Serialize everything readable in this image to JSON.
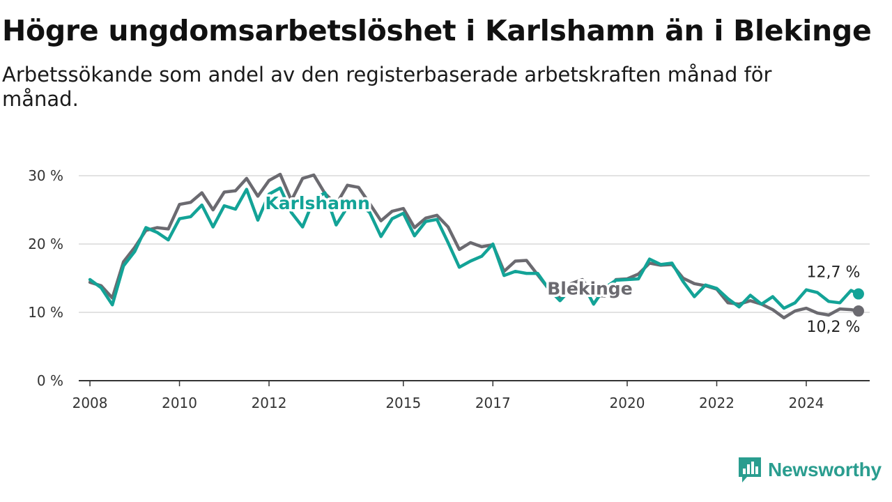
{
  "header": {
    "title": "Högre ungdomsarbetslöshet i Karlshamn än i Blekinge",
    "subtitle": "Arbetssökande som andel av den registerbaserade arbetskraften månad för månad."
  },
  "brand": {
    "name": "Newsworthy",
    "color": "#2a9d8f"
  },
  "chart_data": {
    "type": "line",
    "title": "Högre ungdomsarbetslöshet i Karlshamn än i Blekinge",
    "subtitle": "Arbetssökande som andel av den registerbaserade arbetskraften månad för månad.",
    "xlim": [
      "2007-10",
      "2025-06"
    ],
    "ylim": [
      0,
      30
    ],
    "yticks": [
      0,
      10,
      20,
      30
    ],
    "ytick_labels": [
      "0 %",
      "10 %",
      "20 %",
      "30 %"
    ],
    "xticks": [
      "2008-01",
      "2010-01",
      "2012-01",
      "2015-01",
      "2017-01",
      "2020-01",
      "2022-01",
      "2024-01"
    ],
    "xtick_labels": [
      "2008",
      "2010",
      "2012",
      "2015",
      "2017",
      "2020",
      "2022",
      "2024"
    ],
    "grid": true,
    "legend": "direct labels",
    "series": [
      {
        "name": "Blekinge",
        "color": "#6b6a70",
        "end_label": "10,2 %",
        "points": [
          [
            "2008-01",
            14.4
          ],
          [
            "2008-04",
            13.9
          ],
          [
            "2008-07",
            12.1
          ],
          [
            "2008-10",
            17.4
          ],
          [
            "2009-01",
            19.5
          ],
          [
            "2009-04",
            22.0
          ],
          [
            "2009-07",
            22.4
          ],
          [
            "2009-10",
            22.2
          ],
          [
            "2010-01",
            25.8
          ],
          [
            "2010-04",
            26.1
          ],
          [
            "2010-07",
            27.5
          ],
          [
            "2010-10",
            25.0
          ],
          [
            "2011-01",
            27.6
          ],
          [
            "2011-04",
            27.8
          ],
          [
            "2011-07",
            29.6
          ],
          [
            "2011-10",
            27.0
          ],
          [
            "2012-01",
            29.3
          ],
          [
            "2012-04",
            30.2
          ],
          [
            "2012-07",
            26.4
          ],
          [
            "2012-10",
            29.6
          ],
          [
            "2013-01",
            30.1
          ],
          [
            "2013-04",
            27.4
          ],
          [
            "2013-07",
            25.8
          ],
          [
            "2013-10",
            28.6
          ],
          [
            "2014-01",
            28.3
          ],
          [
            "2014-04",
            25.9
          ],
          [
            "2014-07",
            23.4
          ],
          [
            "2014-10",
            24.8
          ],
          [
            "2015-01",
            25.2
          ],
          [
            "2015-04",
            22.4
          ],
          [
            "2015-07",
            23.8
          ],
          [
            "2015-10",
            24.2
          ],
          [
            "2016-01",
            22.5
          ],
          [
            "2016-04",
            19.2
          ],
          [
            "2016-07",
            20.2
          ],
          [
            "2016-10",
            19.6
          ],
          [
            "2017-01",
            19.9
          ],
          [
            "2017-04",
            16.0
          ],
          [
            "2017-07",
            17.5
          ],
          [
            "2017-10",
            17.6
          ],
          [
            "2018-01",
            15.5
          ],
          [
            "2018-04",
            13.4
          ],
          [
            "2018-07",
            12.2
          ],
          [
            "2018-10",
            14.2
          ],
          [
            "2019-01",
            14.8
          ],
          [
            "2019-04",
            12.5
          ],
          [
            "2019-07",
            12.4
          ],
          [
            "2019-10",
            14.8
          ],
          [
            "2020-01",
            14.9
          ],
          [
            "2020-04",
            15.6
          ],
          [
            "2020-07",
            17.2
          ],
          [
            "2020-10",
            16.9
          ],
          [
            "2021-01",
            17.0
          ],
          [
            "2021-04",
            15.0
          ],
          [
            "2021-07",
            14.2
          ],
          [
            "2021-10",
            13.9
          ],
          [
            "2022-01",
            13.4
          ],
          [
            "2022-04",
            11.4
          ],
          [
            "2022-07",
            11.2
          ],
          [
            "2022-10",
            11.7
          ],
          [
            "2023-01",
            11.2
          ],
          [
            "2023-04",
            10.4
          ],
          [
            "2023-07",
            9.2
          ],
          [
            "2023-10",
            10.2
          ],
          [
            "2024-01",
            10.6
          ],
          [
            "2024-04",
            9.9
          ],
          [
            "2024-07",
            9.6
          ],
          [
            "2024-10",
            10.5
          ],
          [
            "2025-01",
            10.4
          ],
          [
            "2025-03",
            10.2
          ]
        ]
      },
      {
        "name": "Karlshamn",
        "color": "#13a397",
        "end_label": "12,7 %",
        "points": [
          [
            "2008-01",
            14.8
          ],
          [
            "2008-04",
            13.6
          ],
          [
            "2008-07",
            11.1
          ],
          [
            "2008-10",
            16.8
          ],
          [
            "2009-01",
            18.9
          ],
          [
            "2009-04",
            22.4
          ],
          [
            "2009-07",
            21.7
          ],
          [
            "2009-10",
            20.6
          ],
          [
            "2010-01",
            23.7
          ],
          [
            "2010-04",
            24.0
          ],
          [
            "2010-07",
            25.7
          ],
          [
            "2010-10",
            22.5
          ],
          [
            "2011-01",
            25.6
          ],
          [
            "2011-04",
            25.1
          ],
          [
            "2011-07",
            28.0
          ],
          [
            "2011-10",
            23.5
          ],
          [
            "2012-01",
            27.3
          ],
          [
            "2012-04",
            28.2
          ],
          [
            "2012-07",
            24.6
          ],
          [
            "2012-10",
            22.5
          ],
          [
            "2013-01",
            26.5
          ],
          [
            "2013-04",
            27.5
          ],
          [
            "2013-07",
            22.8
          ],
          [
            "2013-10",
            25.4
          ],
          [
            "2014-01",
            26.0
          ],
          [
            "2014-04",
            24.6
          ],
          [
            "2014-07",
            21.1
          ],
          [
            "2014-10",
            23.7
          ],
          [
            "2015-01",
            24.5
          ],
          [
            "2015-04",
            21.2
          ],
          [
            "2015-07",
            23.3
          ],
          [
            "2015-10",
            23.6
          ],
          [
            "2016-01",
            20.2
          ],
          [
            "2016-04",
            16.6
          ],
          [
            "2016-07",
            17.5
          ],
          [
            "2016-10",
            18.2
          ],
          [
            "2017-01",
            20.0
          ],
          [
            "2017-04",
            15.4
          ],
          [
            "2017-07",
            16.0
          ],
          [
            "2017-10",
            15.7
          ],
          [
            "2018-01",
            15.7
          ],
          [
            "2018-04",
            13.4
          ],
          [
            "2018-07",
            11.7
          ],
          [
            "2018-10",
            13.5
          ],
          [
            "2019-01",
            14.3
          ],
          [
            "2019-04",
            11.2
          ],
          [
            "2019-07",
            13.6
          ],
          [
            "2019-10",
            14.7
          ],
          [
            "2020-01",
            14.8
          ],
          [
            "2020-04",
            14.9
          ],
          [
            "2020-07",
            17.8
          ],
          [
            "2020-10",
            17.0
          ],
          [
            "2021-01",
            17.2
          ],
          [
            "2021-04",
            14.5
          ],
          [
            "2021-07",
            12.3
          ],
          [
            "2021-10",
            14.0
          ],
          [
            "2022-01",
            13.5
          ],
          [
            "2022-04",
            12.0
          ],
          [
            "2022-07",
            10.8
          ],
          [
            "2022-10",
            12.5
          ],
          [
            "2023-01",
            11.2
          ],
          [
            "2023-04",
            12.3
          ],
          [
            "2023-07",
            10.6
          ],
          [
            "2023-10",
            11.4
          ],
          [
            "2024-01",
            13.3
          ],
          [
            "2024-04",
            12.9
          ],
          [
            "2024-07",
            11.6
          ],
          [
            "2024-10",
            11.4
          ],
          [
            "2025-01",
            13.2
          ],
          [
            "2025-03",
            12.7
          ]
        ]
      }
    ],
    "annotations": [
      {
        "text": "Karlshamn",
        "series": "Karlshamn",
        "anchor": [
          "2013-02",
          26.0
        ]
      },
      {
        "text": "Blekinge",
        "series": "Blekinge",
        "anchor": [
          "2019-03",
          13.5
        ]
      }
    ]
  }
}
